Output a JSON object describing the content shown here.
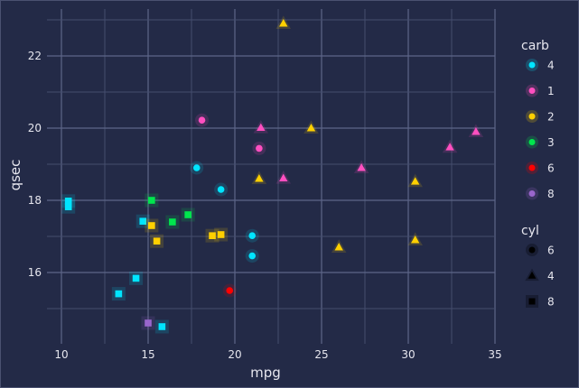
{
  "chart_data": {
    "type": "scatter",
    "title": "",
    "xlabel": "mpg",
    "ylabel": "qsec",
    "xlim": [
      9.2,
      35.0
    ],
    "ylim": [
      14.03,
      23.3
    ],
    "xticks": [
      10,
      15,
      20,
      25,
      30,
      35
    ],
    "yticks": [
      16,
      18,
      20,
      22
    ],
    "grid": true,
    "legend_placement": "right",
    "colors": {
      "4": "#00e5ff",
      "1": "#ff4fc0",
      "2": "#ffd000",
      "3": "#00e64d",
      "6": "#ff0000",
      "8": "#9966cc"
    },
    "legends": [
      {
        "title": "carb",
        "entries": [
          {
            "label": "4",
            "color": "#00e5ff",
            "shape": "circle"
          },
          {
            "label": "1",
            "color": "#ff4fc0",
            "shape": "circle"
          },
          {
            "label": "2",
            "color": "#ffd000",
            "shape": "circle"
          },
          {
            "label": "3",
            "color": "#00e64d",
            "shape": "circle"
          },
          {
            "label": "6",
            "color": "#ff0000",
            "shape": "circle"
          },
          {
            "label": "8",
            "color": "#9966cc",
            "shape": "circle"
          }
        ]
      },
      {
        "title": "cyl",
        "entries": [
          {
            "label": "6",
            "color": "#000000",
            "shape": "circle"
          },
          {
            "label": "4",
            "color": "#000000",
            "shape": "triangle"
          },
          {
            "label": "8",
            "color": "#000000",
            "shape": "square"
          }
        ]
      }
    ],
    "points": [
      {
        "mpg": 21.0,
        "qsec": 16.46,
        "cyl": 6,
        "carb": 4
      },
      {
        "mpg": 21.0,
        "qsec": 17.02,
        "cyl": 6,
        "carb": 4
      },
      {
        "mpg": 22.8,
        "qsec": 18.61,
        "cyl": 4,
        "carb": 1
      },
      {
        "mpg": 21.4,
        "qsec": 19.44,
        "cyl": 6,
        "carb": 1
      },
      {
        "mpg": 18.7,
        "qsec": 17.02,
        "cyl": 8,
        "carb": 2
      },
      {
        "mpg": 18.1,
        "qsec": 20.22,
        "cyl": 6,
        "carb": 1
      },
      {
        "mpg": 14.3,
        "qsec": 15.84,
        "cyl": 8,
        "carb": 4
      },
      {
        "mpg": 24.4,
        "qsec": 20.0,
        "cyl": 4,
        "carb": 2
      },
      {
        "mpg": 22.8,
        "qsec": 22.9,
        "cyl": 4,
        "carb": 2
      },
      {
        "mpg": 19.2,
        "qsec": 18.3,
        "cyl": 6,
        "carb": 4
      },
      {
        "mpg": 17.8,
        "qsec": 18.9,
        "cyl": 6,
        "carb": 4
      },
      {
        "mpg": 16.4,
        "qsec": 17.4,
        "cyl": 8,
        "carb": 3
      },
      {
        "mpg": 17.3,
        "qsec": 17.6,
        "cyl": 8,
        "carb": 3
      },
      {
        "mpg": 15.2,
        "qsec": 18.0,
        "cyl": 8,
        "carb": 3
      },
      {
        "mpg": 10.4,
        "qsec": 17.98,
        "cyl": 8,
        "carb": 4
      },
      {
        "mpg": 10.4,
        "qsec": 17.82,
        "cyl": 8,
        "carb": 4
      },
      {
        "mpg": 14.7,
        "qsec": 17.42,
        "cyl": 8,
        "carb": 4
      },
      {
        "mpg": 32.4,
        "qsec": 19.47,
        "cyl": 4,
        "carb": 1
      },
      {
        "mpg": 30.4,
        "qsec": 18.52,
        "cyl": 4,
        "carb": 2
      },
      {
        "mpg": 33.9,
        "qsec": 19.9,
        "cyl": 4,
        "carb": 1
      },
      {
        "mpg": 21.5,
        "qsec": 20.01,
        "cyl": 4,
        "carb": 1
      },
      {
        "mpg": 15.5,
        "qsec": 16.87,
        "cyl": 8,
        "carb": 2
      },
      {
        "mpg": 15.2,
        "qsec": 17.3,
        "cyl": 8,
        "carb": 2
      },
      {
        "mpg": 13.3,
        "qsec": 15.41,
        "cyl": 8,
        "carb": 4
      },
      {
        "mpg": 19.2,
        "qsec": 17.05,
        "cyl": 8,
        "carb": 2
      },
      {
        "mpg": 27.3,
        "qsec": 18.9,
        "cyl": 4,
        "carb": 1
      },
      {
        "mpg": 26.0,
        "qsec": 16.7,
        "cyl": 4,
        "carb": 2
      },
      {
        "mpg": 30.4,
        "qsec": 16.9,
        "cyl": 4,
        "carb": 2
      },
      {
        "mpg": 15.8,
        "qsec": 14.5,
        "cyl": 8,
        "carb": 4
      },
      {
        "mpg": 19.7,
        "qsec": 15.5,
        "cyl": 6,
        "carb": 6
      },
      {
        "mpg": 15.0,
        "qsec": 14.6,
        "cyl": 8,
        "carb": 8
      },
      {
        "mpg": 21.4,
        "qsec": 18.6,
        "cyl": 4,
        "carb": 2
      }
    ]
  }
}
